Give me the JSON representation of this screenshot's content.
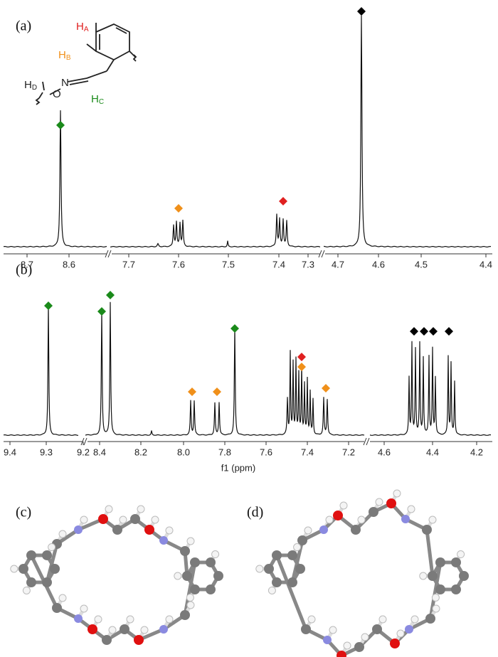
{
  "panels": {
    "a": "(a)",
    "b": "(b)",
    "c": "(c)",
    "d": "(d)"
  },
  "structure": {
    "ha": {
      "text": "H",
      "sub": "A"
    },
    "hb": {
      "text": "H",
      "sub": "B"
    },
    "hc": {
      "text": "H",
      "sub": "C"
    },
    "hd": {
      "text": "H",
      "sub": "D"
    },
    "n": "N",
    "o": "O"
  },
  "axis_a": {
    "ticks": [
      "8.7",
      "8.6",
      "7.7",
      "7.6",
      "7.5",
      "7.4",
      "7.3",
      "4.7",
      "4.6",
      "4.5",
      "4.4"
    ]
  },
  "axis_b": {
    "ticks": [
      "9.4",
      "9.3",
      "9.2",
      "8.4",
      "8.2",
      "8.0",
      "7.8",
      "7.6",
      "7.4",
      "7.2",
      "4.6",
      "4.4",
      "4.2"
    ],
    "title": "f1 (ppm)"
  }
}
